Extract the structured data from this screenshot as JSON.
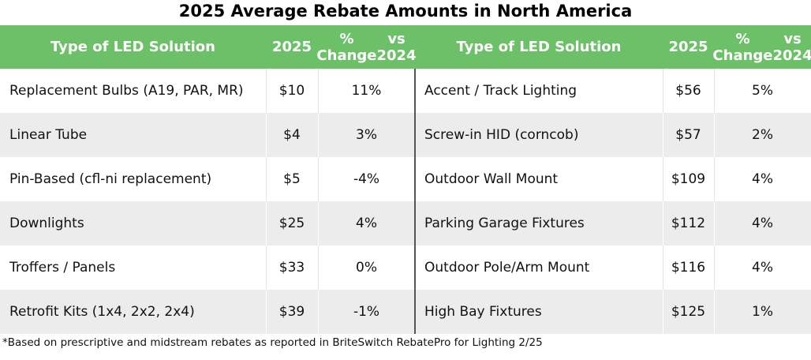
{
  "chart_data": {
    "type": "table",
    "title": "2025 Average Rebate Amounts in North America",
    "columns": [
      "Type of LED Solution",
      "2025",
      "% Change vs 2024"
    ],
    "column_lines": [
      [
        "Type of LED Solution"
      ],
      [
        "2025"
      ],
      [
        "% Change",
        "vs 2024"
      ]
    ],
    "left_rows": [
      [
        "Replacement Bulbs (A19, PAR, MR)",
        "$10",
        "11%"
      ],
      [
        "Linear Tube",
        "$4",
        "3%"
      ],
      [
        "Pin-Based (cfl-ni replacement)",
        "$5",
        "-4%"
      ],
      [
        "Downlights",
        "$25",
        "4%"
      ],
      [
        "Troffers / Panels",
        "$33",
        "0%"
      ],
      [
        "Retrofit Kits (1x4, 2x2, 2x4)",
        "$39",
        "-1%"
      ]
    ],
    "right_rows": [
      [
        "Accent / Track Lighting",
        "$56",
        "5%"
      ],
      [
        "Screw-in HID (corncob)",
        "$57",
        "2%"
      ],
      [
        "Outdoor Wall Mount",
        "$109",
        "4%"
      ],
      [
        "Parking Garage Fixtures",
        "$112",
        "4%"
      ],
      [
        "Outdoor Pole/Arm Mount",
        "$116",
        "4%"
      ],
      [
        "High Bay Fixtures",
        "$125",
        "1%"
      ]
    ],
    "footnote": "*Based on prescriptive and midstream rebates as reported in BriteSwitch RebatePro for Lighting 2/25"
  },
  "colors": {
    "header": "#6cc067",
    "alt_row": "#ececec",
    "header_text": "#ffffff"
  }
}
